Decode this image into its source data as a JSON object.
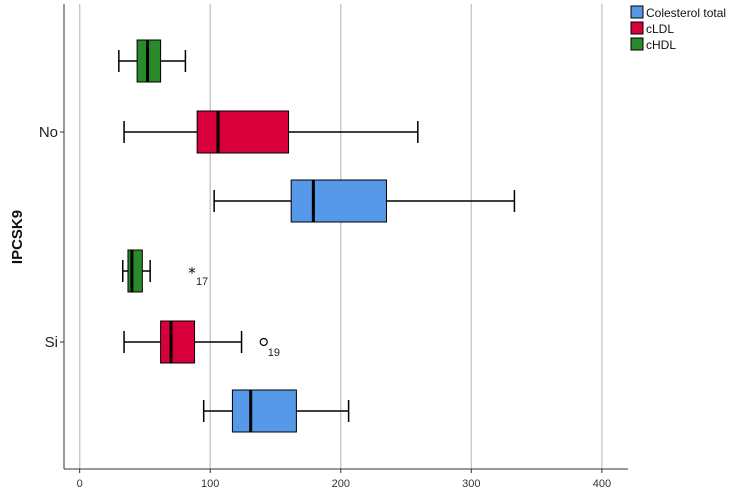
{
  "chart_data": {
    "type": "boxplot",
    "orientation": "horizontal",
    "ylabel": "IPCSK9",
    "xlabel": "",
    "xlim": [
      -12,
      420
    ],
    "xticks": [
      0,
      100,
      200,
      300,
      400
    ],
    "grid": true,
    "legend_position": "top-right",
    "categories": [
      "No",
      "Si"
    ],
    "series": [
      {
        "name": "Colesterol total",
        "color": "#5599e8"
      },
      {
        "name": "cLDL",
        "color": "#d8003a"
      },
      {
        "name": "cHDL",
        "color": "#2a8a2a"
      }
    ],
    "boxes": [
      {
        "category": "No",
        "series": "cHDL",
        "whisker_low": 30,
        "q1": 44,
        "median": 52,
        "q3": 62,
        "whisker_high": 81
      },
      {
        "category": "No",
        "series": "cLDL",
        "whisker_low": 34,
        "q1": 90,
        "median": 106,
        "q3": 160,
        "whisker_high": 259
      },
      {
        "category": "No",
        "series": "Colesterol total",
        "whisker_low": 103,
        "q1": 162,
        "median": 179,
        "q3": 235,
        "whisker_high": 333
      },
      {
        "category": "Si",
        "series": "cHDL",
        "whisker_low": 33,
        "q1": 37,
        "median": 40,
        "q3": 48,
        "whisker_high": 54
      },
      {
        "category": "Si",
        "series": "cLDL",
        "whisker_low": 34,
        "q1": 62,
        "median": 70,
        "q3": 88,
        "whisker_high": 124
      },
      {
        "category": "Si",
        "series": "Colesterol total",
        "whisker_low": 95,
        "q1": 117,
        "median": 131,
        "q3": 166,
        "whisker_high": 206
      }
    ],
    "outliers": [
      {
        "category": "Si",
        "series": "cHDL",
        "value": 86,
        "marker": "star",
        "label": "17"
      },
      {
        "category": "Si",
        "series": "cLDL",
        "value": 141,
        "marker": "circle",
        "label": "19"
      }
    ]
  }
}
